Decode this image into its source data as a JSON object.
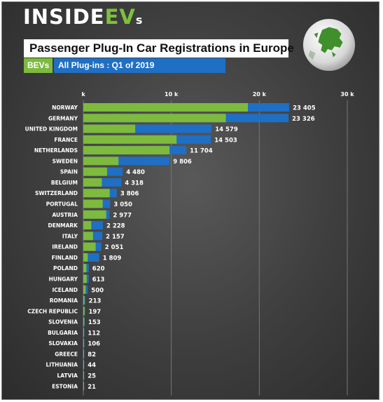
{
  "brand": {
    "logo_main": "INSIDE",
    "logo_ev": "EV",
    "logo_s": "s"
  },
  "title": "Passenger Plug-In Car Registrations in Europe",
  "legend": {
    "bev": "BEVs",
    "all": "All Plug-ins : Q1 of 2019"
  },
  "colors": {
    "bev": "#7dba3d",
    "all": "#1f6fc4",
    "text": "#ffffff"
  },
  "chart_data": {
    "type": "bar",
    "orientation": "horizontal",
    "title": "Passenger Plug-In Car Registrations in Europe",
    "xlim": [
      0,
      30000
    ],
    "x_ticks": [
      0,
      10000,
      20000,
      30000
    ],
    "x_tick_labels": [
      "k",
      "10 k",
      "20 k",
      "30 k"
    ],
    "categories": [
      "NORWAY",
      "GERMANY",
      "UNITED KINGDOM",
      "FRANCE",
      "NETHERLANDS",
      "SWEDEN",
      "SPAIN",
      "BELGIUM",
      "SWITZERLAND",
      "PORTUGAL",
      "AUSTRIA",
      "DENMARK",
      "ITALY",
      "IRELAND",
      "FINLAND",
      "POLAND",
      "HUNGARY",
      "ICELAND",
      "ROMANIA",
      "CZECH REPUBLIC",
      "SLOVENIA",
      "BULGARIA",
      "SLOVAKIA",
      "GREECE",
      "LITHUANIA",
      "LATVIA",
      "ESTONIA"
    ],
    "series": [
      {
        "name": "BEVs",
        "values": [
          18700,
          16200,
          5900,
          10600,
          9800,
          4000,
          2700,
          2100,
          3000,
          2200,
          2600,
          900,
          1100,
          1400,
          500,
          350,
          380,
          250,
          130,
          140,
          110,
          70,
          65,
          45,
          30,
          15,
          14
        ]
      },
      {
        "name": "All Plug-ins : Q1 of 2019",
        "values": [
          23405,
          23326,
          14579,
          14503,
          11704,
          9806,
          4480,
          4318,
          3806,
          3050,
          2977,
          2228,
          2157,
          2051,
          1809,
          620,
          613,
          500,
          213,
          197,
          153,
          112,
          106,
          82,
          44,
          25,
          21
        ]
      }
    ],
    "value_labels": [
      "23 405",
      "23 326",
      "14 579",
      "14 503",
      "11 704",
      "9 806",
      "4 480",
      "4 318",
      "3 806",
      "3 050",
      "2 977",
      "2 228",
      "2 157",
      "2 051",
      "1 809",
      "620",
      "613",
      "500",
      "213",
      "197",
      "153",
      "112",
      "106",
      "82",
      "44",
      "25",
      "21"
    ],
    "grid": "vertical"
  }
}
